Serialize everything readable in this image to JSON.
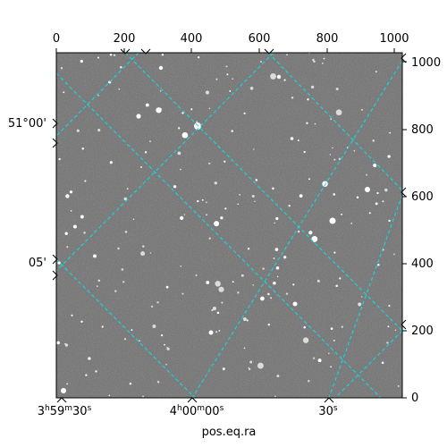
{
  "image": {
    "kind": "astronomical-star-field",
    "colors": {
      "sky": "#6f6f6f",
      "star": "#ffffff",
      "grid": "#00e5ee",
      "frame": "#000000"
    }
  },
  "top_axis": {
    "ticks": [
      "0",
      "200",
      "400",
      "600",
      "800",
      "1000"
    ]
  },
  "right_axis": {
    "ticks": [
      "0",
      "200",
      "400",
      "600",
      "800",
      "1000"
    ]
  },
  "left_axis": {
    "ticks": [
      "51°00'",
      "05'"
    ]
  },
  "bottom_axis": {
    "ticks": [
      {
        "h": "3",
        "m": "59",
        "s": "30"
      },
      {
        "h": "4",
        "m": "00",
        "s": "00"
      },
      {
        "s": "30"
      }
    ],
    "label": "pos.eq.ra"
  }
}
